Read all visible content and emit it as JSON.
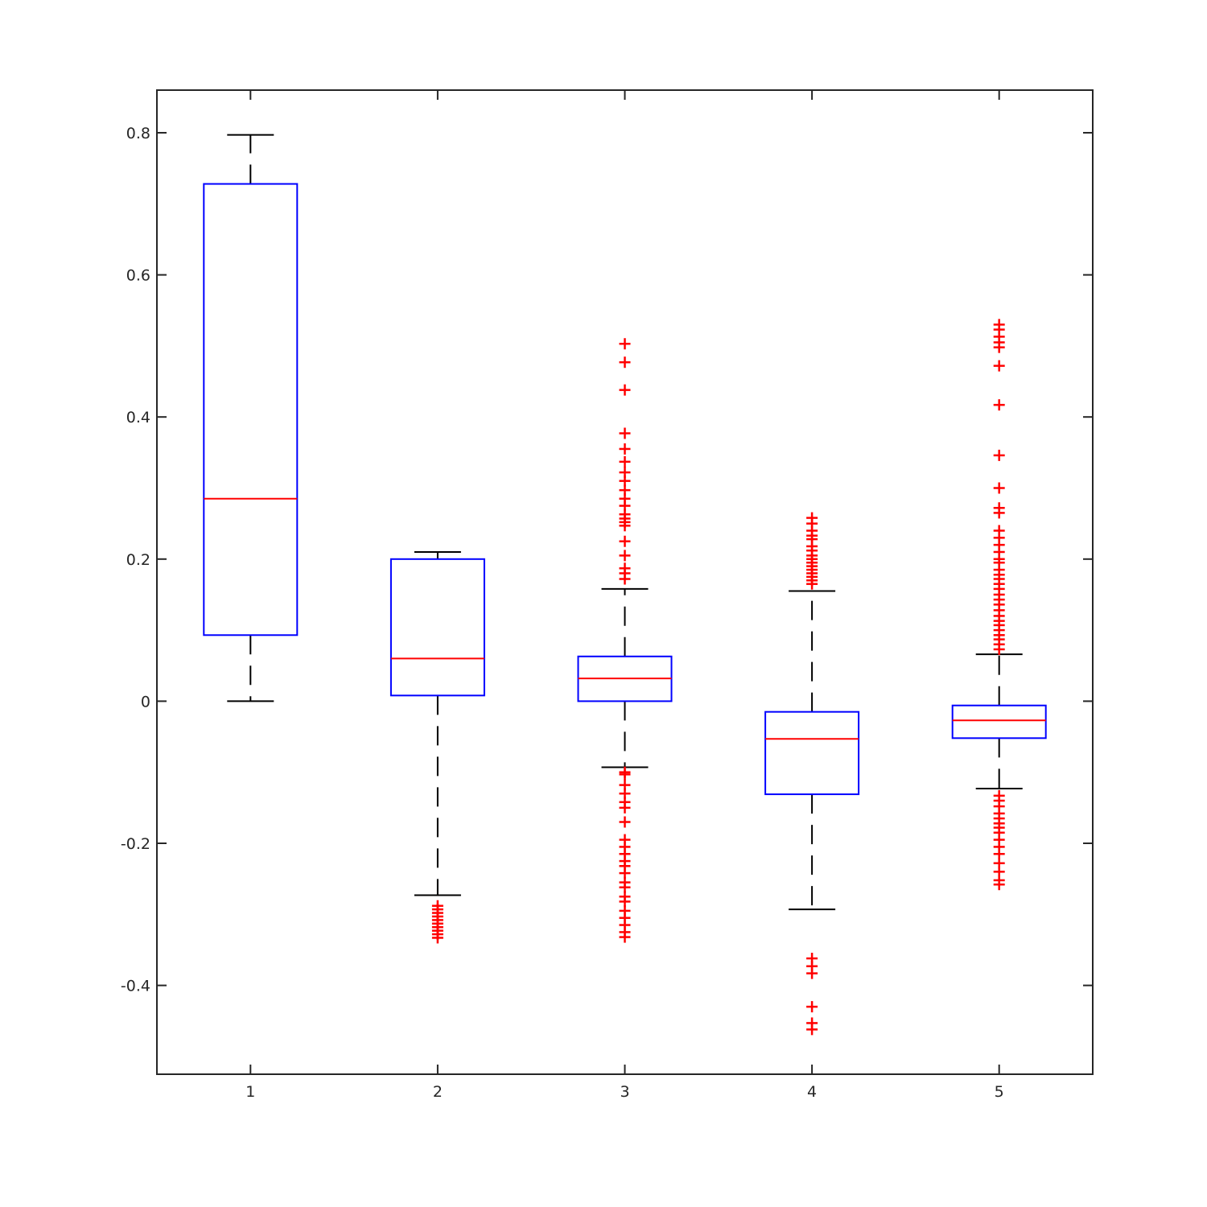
{
  "chart_data": {
    "type": "box",
    "title": "",
    "xlabel": "",
    "ylabel": "",
    "ylim": [
      -0.525,
      0.86
    ],
    "xlim": [
      0.5,
      5.5
    ],
    "yticks": [
      -0.4,
      -0.2,
      0,
      0.2,
      0.4,
      0.6,
      0.8
    ],
    "ytick_labels": [
      "-0.4",
      "-0.2",
      "0",
      "0.2",
      "0.4",
      "0.6",
      "0.8"
    ],
    "xtick_labels": [
      "1",
      "2",
      "3",
      "4",
      "5"
    ],
    "grid": false,
    "colors": {
      "box": "#0000ff",
      "median": "#ff0000",
      "whisker": "#000000",
      "outlier": "#ff0000",
      "axis": "#262626"
    },
    "boxes": [
      {
        "label": "1",
        "whisker_low": 0.0,
        "q1": 0.093,
        "median": 0.285,
        "q3": 0.728,
        "whisker_high": 0.797,
        "outliers": []
      },
      {
        "label": "2",
        "whisker_low": -0.273,
        "q1": 0.008,
        "median": 0.06,
        "q3": 0.2,
        "whisker_high": 0.21,
        "outliers": [
          -0.288,
          -0.293,
          -0.298,
          -0.303,
          -0.308,
          -0.313,
          -0.318,
          -0.323,
          -0.328,
          -0.333
        ]
      },
      {
        "label": "3",
        "whisker_low": -0.093,
        "q1": 0.0,
        "median": 0.032,
        "q3": 0.063,
        "whisker_high": 0.158,
        "outliers": [
          0.503,
          0.477,
          0.438,
          0.377,
          0.355,
          0.337,
          0.322,
          0.31,
          0.297,
          0.285,
          0.275,
          0.263,
          0.257,
          0.252,
          0.247,
          0.225,
          0.205,
          0.187,
          0.18,
          0.172,
          -0.1,
          -0.103,
          -0.118,
          -0.13,
          -0.142,
          -0.15,
          -0.17,
          -0.195,
          -0.205,
          -0.215,
          -0.225,
          -0.232,
          -0.242,
          -0.255,
          -0.262,
          -0.275,
          -0.282,
          -0.295,
          -0.305,
          -0.315,
          -0.325,
          -0.332
        ]
      },
      {
        "label": "4",
        "whisker_low": -0.293,
        "q1": -0.131,
        "median": -0.053,
        "q3": -0.015,
        "whisker_high": 0.155,
        "outliers": [
          0.258,
          0.25,
          0.24,
          0.233,
          0.228,
          0.218,
          0.212,
          0.205,
          0.2,
          0.195,
          0.19,
          0.185,
          0.18,
          0.175,
          0.17,
          0.165,
          -0.362,
          -0.373,
          -0.383,
          -0.43,
          -0.453,
          -0.462
        ]
      },
      {
        "label": "5",
        "whisker_low": -0.123,
        "q1": -0.052,
        "median": -0.027,
        "q3": -0.006,
        "whisker_high": 0.066,
        "outliers": [
          0.53,
          0.523,
          0.513,
          0.505,
          0.498,
          0.472,
          0.417,
          0.346,
          0.3,
          0.272,
          0.265,
          0.24,
          0.23,
          0.22,
          0.21,
          0.2,
          0.195,
          0.185,
          0.178,
          0.172,
          0.165,
          0.158,
          0.15,
          0.143,
          0.136,
          0.128,
          0.12,
          0.113,
          0.107,
          0.1,
          0.093,
          0.087,
          0.08,
          0.073,
          -0.133,
          -0.14,
          -0.148,
          -0.158,
          -0.165,
          -0.172,
          -0.178,
          -0.185,
          -0.195,
          -0.205,
          -0.215,
          -0.228,
          -0.24,
          -0.252,
          -0.258
        ]
      }
    ]
  }
}
